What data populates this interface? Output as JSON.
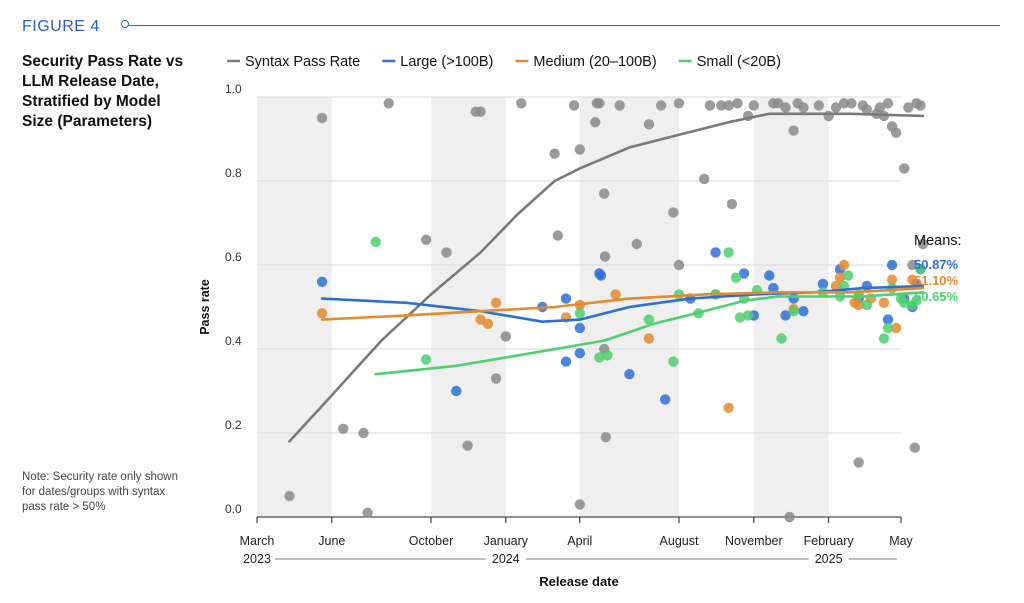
{
  "figure_label": "FIGURE 4",
  "title": "Security Pass Rate vs LLM Release Date, Stratified by Model Size (Parameters)",
  "note": "Note: Security rate only shown for dates/groups with syntax pass rate > 50%",
  "means": {
    "title": "Means:",
    "large": "50.87%",
    "medium": "51.10%",
    "small": "50.65%"
  },
  "colors": {
    "syntax": "#8a8a8a",
    "large": "#2e6fd6",
    "medium": "#e58a2e",
    "small": "#4fcf6f",
    "band": "#efefef",
    "grid": "#d9d9d9"
  },
  "chart_data": {
    "type": "scatter",
    "xlabel": "Release date",
    "ylabel": "Pass rate",
    "ylim": [
      0,
      1
    ],
    "yticks": [
      "0.0",
      "0.2",
      "0.4",
      "0.6",
      "0.8",
      "1.0"
    ],
    "xlim": [
      "2023-03-01",
      "2025-05-01"
    ],
    "xticks": [
      {
        "date": "2023-03-01",
        "label": "March"
      },
      {
        "date": "2023-06-01",
        "label": "June"
      },
      {
        "date": "2023-10-01",
        "label": "October"
      },
      {
        "date": "2024-01-01",
        "label": "January"
      },
      {
        "date": "2024-04-01",
        "label": "April"
      },
      {
        "date": "2024-08-01",
        "label": "August"
      },
      {
        "date": "2024-11-01",
        "label": "November"
      },
      {
        "date": "2025-02-01",
        "label": "February"
      },
      {
        "date": "2025-05-01",
        "label": "May"
      }
    ],
    "year_labels": [
      {
        "date": "2023-03-01",
        "label": "2023"
      },
      {
        "date": "2024-01-01",
        "label": "2024"
      },
      {
        "date": "2025-02-01",
        "label": "2025"
      }
    ],
    "bands": [
      [
        "2023-03-01",
        "2023-06-01"
      ],
      [
        "2023-10-01",
        "2024-01-01"
      ],
      [
        "2024-04-01",
        "2024-08-01"
      ],
      [
        "2024-11-01",
        "2025-02-01"
      ]
    ],
    "legend_position": "top",
    "series": [
      {
        "name": "Syntax Pass Rate",
        "key": "syntax",
        "points": [
          [
            "2023-04-10",
            0.05
          ],
          [
            "2023-05-20",
            0.95
          ],
          [
            "2023-06-15",
            0.21
          ],
          [
            "2023-07-10",
            0.2
          ],
          [
            "2023-07-15",
            0.01
          ],
          [
            "2023-08-10",
            0.985
          ],
          [
            "2023-09-25",
            0.66
          ],
          [
            "2023-10-20",
            0.63
          ],
          [
            "2023-11-15",
            0.17
          ],
          [
            "2023-11-25",
            0.965
          ],
          [
            "2023-12-01",
            0.965
          ],
          [
            "2023-12-20",
            0.33
          ],
          [
            "2024-01-01",
            0.43
          ],
          [
            "2024-01-20",
            0.985
          ],
          [
            "2024-03-01",
            0.865
          ],
          [
            "2024-03-05",
            0.67
          ],
          [
            "2024-03-25",
            0.98
          ],
          [
            "2024-04-01",
            0.875
          ],
          [
            "2024-04-01",
            0.03
          ],
          [
            "2024-04-20",
            0.94
          ],
          [
            "2024-04-22",
            0.985
          ],
          [
            "2024-04-25",
            0.985
          ],
          [
            "2024-05-01",
            0.77
          ],
          [
            "2024-05-02",
            0.62
          ],
          [
            "2024-05-03",
            0.19
          ],
          [
            "2024-05-01",
            0.4
          ],
          [
            "2024-05-20",
            0.98
          ],
          [
            "2024-06-10",
            0.65
          ],
          [
            "2024-06-25",
            0.935
          ],
          [
            "2024-07-10",
            0.98
          ],
          [
            "2024-07-25",
            0.725
          ],
          [
            "2024-08-01",
            0.6
          ],
          [
            "2024-08-01",
            0.985
          ],
          [
            "2024-09-01",
            0.805
          ],
          [
            "2024-09-08",
            0.98
          ],
          [
            "2024-09-22",
            0.98
          ],
          [
            "2024-10-01",
            0.98
          ],
          [
            "2024-10-05",
            0.745
          ],
          [
            "2024-10-12",
            0.985
          ],
          [
            "2024-10-25",
            0.955
          ],
          [
            "2024-11-01",
            0.98
          ],
          [
            "2024-11-25",
            0.985
          ],
          [
            "2024-12-01",
            0.985
          ],
          [
            "2024-12-10",
            0.975
          ],
          [
            "2024-12-15",
            0.0
          ],
          [
            "2024-12-20",
            0.92
          ],
          [
            "2024-12-25",
            0.985
          ],
          [
            "2025-01-01",
            0.975
          ],
          [
            "2025-01-20",
            0.98
          ],
          [
            "2025-02-01",
            0.955
          ],
          [
            "2025-02-10",
            0.975
          ],
          [
            "2025-02-20",
            0.985
          ],
          [
            "2025-03-01",
            0.985
          ],
          [
            "2025-03-10",
            0.13
          ],
          [
            "2025-03-15",
            0.98
          ],
          [
            "2025-03-20",
            0.97
          ],
          [
            "2025-04-01",
            0.96
          ],
          [
            "2025-04-05",
            0.975
          ],
          [
            "2025-04-10",
            0.955
          ],
          [
            "2025-04-15",
            0.985
          ],
          [
            "2025-04-20",
            0.93
          ],
          [
            "2025-04-25",
            0.915
          ],
          [
            "2025-05-05",
            0.83
          ],
          [
            "2025-05-10",
            0.975
          ],
          [
            "2025-05-15",
            0.6
          ],
          [
            "2025-05-18",
            0.165
          ],
          [
            "2025-05-20",
            0.985
          ],
          [
            "2025-05-25",
            0.98
          ],
          [
            "2025-05-28",
            0.65
          ]
        ],
        "trend": [
          [
            "2023-04-10",
            0.18
          ],
          [
            "2023-06-01",
            0.29
          ],
          [
            "2023-08-01",
            0.42
          ],
          [
            "2023-10-01",
            0.53
          ],
          [
            "2023-12-01",
            0.63
          ],
          [
            "2024-01-15",
            0.72
          ],
          [
            "2024-03-01",
            0.8
          ],
          [
            "2024-04-01",
            0.83
          ],
          [
            "2024-06-01",
            0.88
          ],
          [
            "2024-08-01",
            0.91
          ],
          [
            "2024-10-01",
            0.94
          ],
          [
            "2024-11-20",
            0.96
          ],
          [
            "2025-01-01",
            0.96
          ],
          [
            "2025-03-01",
            0.96
          ],
          [
            "2025-05-28",
            0.955
          ]
        ]
      },
      {
        "name": "Large (>100B)",
        "key": "large",
        "points": [
          [
            "2023-05-20",
            0.56
          ],
          [
            "2023-11-01",
            0.3
          ],
          [
            "2024-02-15",
            0.5
          ],
          [
            "2024-03-15",
            0.37
          ],
          [
            "2024-03-15",
            0.52
          ],
          [
            "2024-04-01",
            0.45
          ],
          [
            "2024-04-01",
            0.39
          ],
          [
            "2024-04-25",
            0.58
          ],
          [
            "2024-04-27",
            0.575
          ],
          [
            "2024-06-01",
            0.34
          ],
          [
            "2024-07-15",
            0.28
          ],
          [
            "2024-08-15",
            0.52
          ],
          [
            "2024-09-15",
            0.63
          ],
          [
            "2024-10-20",
            0.58
          ],
          [
            "2024-11-01",
            0.48
          ],
          [
            "2024-11-20",
            0.575
          ],
          [
            "2024-11-25",
            0.545
          ],
          [
            "2024-12-10",
            0.48
          ],
          [
            "2024-12-20",
            0.52
          ],
          [
            "2025-01-01",
            0.49
          ],
          [
            "2025-01-25",
            0.555
          ],
          [
            "2025-02-15",
            0.59
          ],
          [
            "2025-03-10",
            0.52
          ],
          [
            "2025-03-20",
            0.55
          ],
          [
            "2025-04-15",
            0.47
          ],
          [
            "2025-04-20",
            0.6
          ],
          [
            "2025-05-05",
            0.52
          ],
          [
            "2025-05-15",
            0.5
          ],
          [
            "2025-05-20",
            0.555
          ],
          [
            "2025-05-25",
            0.59
          ]
        ],
        "trend": [
          [
            "2023-05-20",
            0.52
          ],
          [
            "2023-09-01",
            0.51
          ],
          [
            "2023-12-01",
            0.49
          ],
          [
            "2024-02-15",
            0.465
          ],
          [
            "2024-04-01",
            0.47
          ],
          [
            "2024-06-01",
            0.5
          ],
          [
            "2024-08-15",
            0.52
          ],
          [
            "2024-11-01",
            0.53
          ],
          [
            "2025-01-15",
            0.535
          ],
          [
            "2025-03-15",
            0.545
          ],
          [
            "2025-05-28",
            0.55
          ]
        ]
      },
      {
        "name": "Medium (20–100B)",
        "key": "medium",
        "points": [
          [
            "2023-05-20",
            0.485
          ],
          [
            "2023-12-01",
            0.47
          ],
          [
            "2023-12-10",
            0.46
          ],
          [
            "2023-12-20",
            0.51
          ],
          [
            "2024-03-15",
            0.475
          ],
          [
            "2024-04-01",
            0.505
          ],
          [
            "2024-05-15",
            0.53
          ],
          [
            "2024-06-25",
            0.425
          ],
          [
            "2024-09-15",
            0.53
          ],
          [
            "2024-10-01",
            0.26
          ],
          [
            "2024-12-20",
            0.495
          ],
          [
            "2025-02-10",
            0.55
          ],
          [
            "2025-02-15",
            0.57
          ],
          [
            "2025-02-20",
            0.6
          ],
          [
            "2025-03-05",
            0.51
          ],
          [
            "2025-03-10",
            0.505
          ],
          [
            "2025-03-25",
            0.52
          ],
          [
            "2025-04-10",
            0.51
          ],
          [
            "2025-04-20",
            0.565
          ],
          [
            "2025-04-25",
            0.45
          ],
          [
            "2025-05-15",
            0.565
          ]
        ],
        "trend": [
          [
            "2023-05-20",
            0.47
          ],
          [
            "2023-09-01",
            0.48
          ],
          [
            "2023-12-01",
            0.49
          ],
          [
            "2024-03-01",
            0.5
          ],
          [
            "2024-06-01",
            0.52
          ],
          [
            "2024-09-01",
            0.53
          ],
          [
            "2024-12-01",
            0.535
          ],
          [
            "2025-03-01",
            0.535
          ],
          [
            "2025-05-28",
            0.545
          ]
        ]
      },
      {
        "name": "Small (<20B)",
        "key": "small",
        "points": [
          [
            "2023-07-25",
            0.655
          ],
          [
            "2023-09-25",
            0.375
          ],
          [
            "2024-04-01",
            0.485
          ],
          [
            "2024-04-25",
            0.38
          ],
          [
            "2024-05-05",
            0.385
          ],
          [
            "2024-06-25",
            0.47
          ],
          [
            "2024-07-25",
            0.37
          ],
          [
            "2024-08-01",
            0.53
          ],
          [
            "2024-08-25",
            0.485
          ],
          [
            "2024-09-15",
            0.53
          ],
          [
            "2024-10-01",
            0.63
          ],
          [
            "2024-10-10",
            0.57
          ],
          [
            "2024-10-15",
            0.475
          ],
          [
            "2024-10-20",
            0.52
          ],
          [
            "2024-10-25",
            0.48
          ],
          [
            "2024-11-05",
            0.54
          ],
          [
            "2024-12-05",
            0.425
          ],
          [
            "2024-12-20",
            0.49
          ],
          [
            "2025-01-25",
            0.535
          ],
          [
            "2025-02-15",
            0.525
          ],
          [
            "2025-02-20",
            0.55
          ],
          [
            "2025-02-25",
            0.575
          ],
          [
            "2025-03-10",
            0.53
          ],
          [
            "2025-03-20",
            0.505
          ],
          [
            "2025-04-10",
            0.425
          ],
          [
            "2025-04-15",
            0.45
          ],
          [
            "2025-04-20",
            0.545
          ],
          [
            "2025-05-01",
            0.52
          ],
          [
            "2025-05-05",
            0.51
          ],
          [
            "2025-05-15",
            0.505
          ],
          [
            "2025-05-20",
            0.515
          ],
          [
            "2025-05-25",
            0.59
          ]
        ],
        "trend": [
          [
            "2023-07-25",
            0.34
          ],
          [
            "2023-11-01",
            0.36
          ],
          [
            "2024-02-01",
            0.39
          ],
          [
            "2024-05-01",
            0.42
          ],
          [
            "2024-07-01",
            0.46
          ],
          [
            "2024-09-01",
            0.49
          ],
          [
            "2024-10-20",
            0.515
          ],
          [
            "2024-12-01",
            0.525
          ],
          [
            "2025-01-15",
            0.525
          ],
          [
            "2025-03-15",
            0.525
          ],
          [
            "2025-05-28",
            0.535
          ]
        ]
      }
    ]
  }
}
